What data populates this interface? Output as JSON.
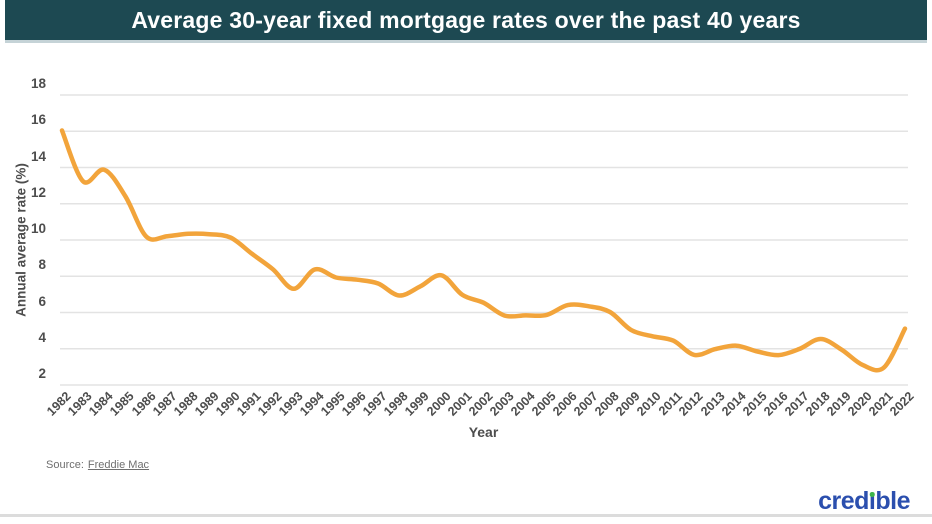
{
  "colors": {
    "banner_bg": "#1D4952",
    "banner_text": "#FFFFFF",
    "grid": "#E3E3E3",
    "axis_text": "#4D4D4D",
    "line": "#F2A43B",
    "source_text": "#6F6F6F",
    "logo_blue": "#2B4FAE",
    "logo_dot_green": "#3DB54A",
    "bottom_rule": "#DCDCDC"
  },
  "chart_data": {
    "type": "line",
    "title": "Average 30-year fixed mortgage rates over the past 40 years",
    "xlabel": "Year",
    "ylabel": "Annual average rate (%)",
    "legend": "none",
    "grid": true,
    "xlim": [
      1982,
      2022
    ],
    "ylim": [
      2,
      18
    ],
    "yticks": [
      2,
      4,
      6,
      8,
      10,
      12,
      14,
      16,
      18
    ],
    "x": [
      1982,
      1983,
      1984,
      1985,
      1986,
      1987,
      1988,
      1989,
      1990,
      1991,
      1992,
      1993,
      1994,
      1995,
      1996,
      1997,
      1998,
      1999,
      2000,
      2001,
      2002,
      2003,
      2004,
      2005,
      2006,
      2007,
      2008,
      2009,
      2010,
      2011,
      2012,
      2013,
      2014,
      2015,
      2016,
      2017,
      2018,
      2019,
      2020,
      2021,
      2022
    ],
    "values": [
      16.04,
      13.24,
      13.88,
      12.43,
      10.19,
      10.21,
      10.34,
      10.32,
      10.13,
      9.25,
      8.39,
      7.31,
      8.38,
      7.93,
      7.81,
      7.6,
      6.94,
      7.44,
      8.05,
      6.97,
      6.54,
      5.83,
      5.84,
      5.87,
      6.41,
      6.34,
      6.03,
      5.04,
      4.69,
      4.45,
      3.66,
      3.98,
      4.17,
      3.85,
      3.65,
      3.99,
      4.54,
      3.94,
      3.1,
      2.96,
      5.11
    ],
    "line_color": "#F2A43B"
  },
  "footer": {
    "source_prefix": "Source:",
    "source_link": "Freddie Mac",
    "logo": {
      "full_text": "credible",
      "part1": "cred",
      "i_char": "ı",
      "part2": "ble"
    }
  }
}
